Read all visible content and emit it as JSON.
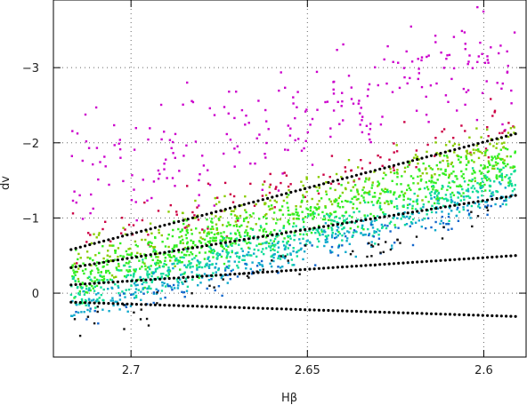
{
  "chart_data": {
    "type": "scatter",
    "title": "",
    "xlabel": "Hβ",
    "ylabel": "dv",
    "xlim": [
      2.722,
      2.588
    ],
    "ylim": [
      0.85,
      -3.9
    ],
    "x_reversed": true,
    "y_reversed": true,
    "grid": true,
    "grid_style": "dotted",
    "x_ticks": [
      {
        "value": 2.7,
        "label": "2.7"
      },
      {
        "value": 2.65,
        "label": "2.65"
      },
      {
        "value": 2.6,
        "label": "2.6"
      }
    ],
    "y_ticks": [
      {
        "value": -3,
        "label": "−3"
      },
      {
        "value": -2,
        "label": "−2"
      },
      {
        "value": -1,
        "label": "−1"
      },
      {
        "value": 0,
        "label": "0"
      }
    ],
    "fit_lines": [
      {
        "x": [
          2.717,
          2.591
        ],
        "y": [
          -0.58,
          -2.12
        ]
      },
      {
        "x": [
          2.717,
          2.591
        ],
        "y": [
          -0.34,
          -1.3
        ]
      },
      {
        "x": [
          2.717,
          2.591
        ],
        "y": [
          -0.11,
          -0.5
        ]
      },
      {
        "x": [
          2.717,
          2.591
        ],
        "y": [
          0.12,
          0.31
        ]
      }
    ],
    "point_colors": [
      "#cc00cc",
      "#cc0044",
      "#88cc00",
      "#33ee22",
      "#11dd99",
      "#11aacc",
      "#1166cc",
      "#111111"
    ],
    "scatter_groups": [
      {
        "color": "#cc00cc",
        "n": 260,
        "offset_center": -0.95,
        "offset_spread": 0.75
      },
      {
        "color": "#cc0044",
        "n": 110,
        "offset_center": -0.1,
        "offset_spread": 0.35
      },
      {
        "color": "#88cc00",
        "n": 320,
        "offset_center": 0.15,
        "offset_spread": 0.35
      },
      {
        "color": "#33ee22",
        "n": 700,
        "offset_center": 0.38,
        "offset_spread": 0.3
      },
      {
        "color": "#11dd99",
        "n": 520,
        "offset_center": 0.62,
        "offset_spread": 0.25
      },
      {
        "color": "#11aacc",
        "n": 280,
        "offset_center": 0.78,
        "offset_spread": 0.22
      },
      {
        "color": "#1166cc",
        "n": 90,
        "offset_center": 0.92,
        "offset_spread": 0.2
      },
      {
        "color": "#111111",
        "n": 55,
        "offset_center": 1.0,
        "offset_spread": 0.25
      }
    ]
  }
}
